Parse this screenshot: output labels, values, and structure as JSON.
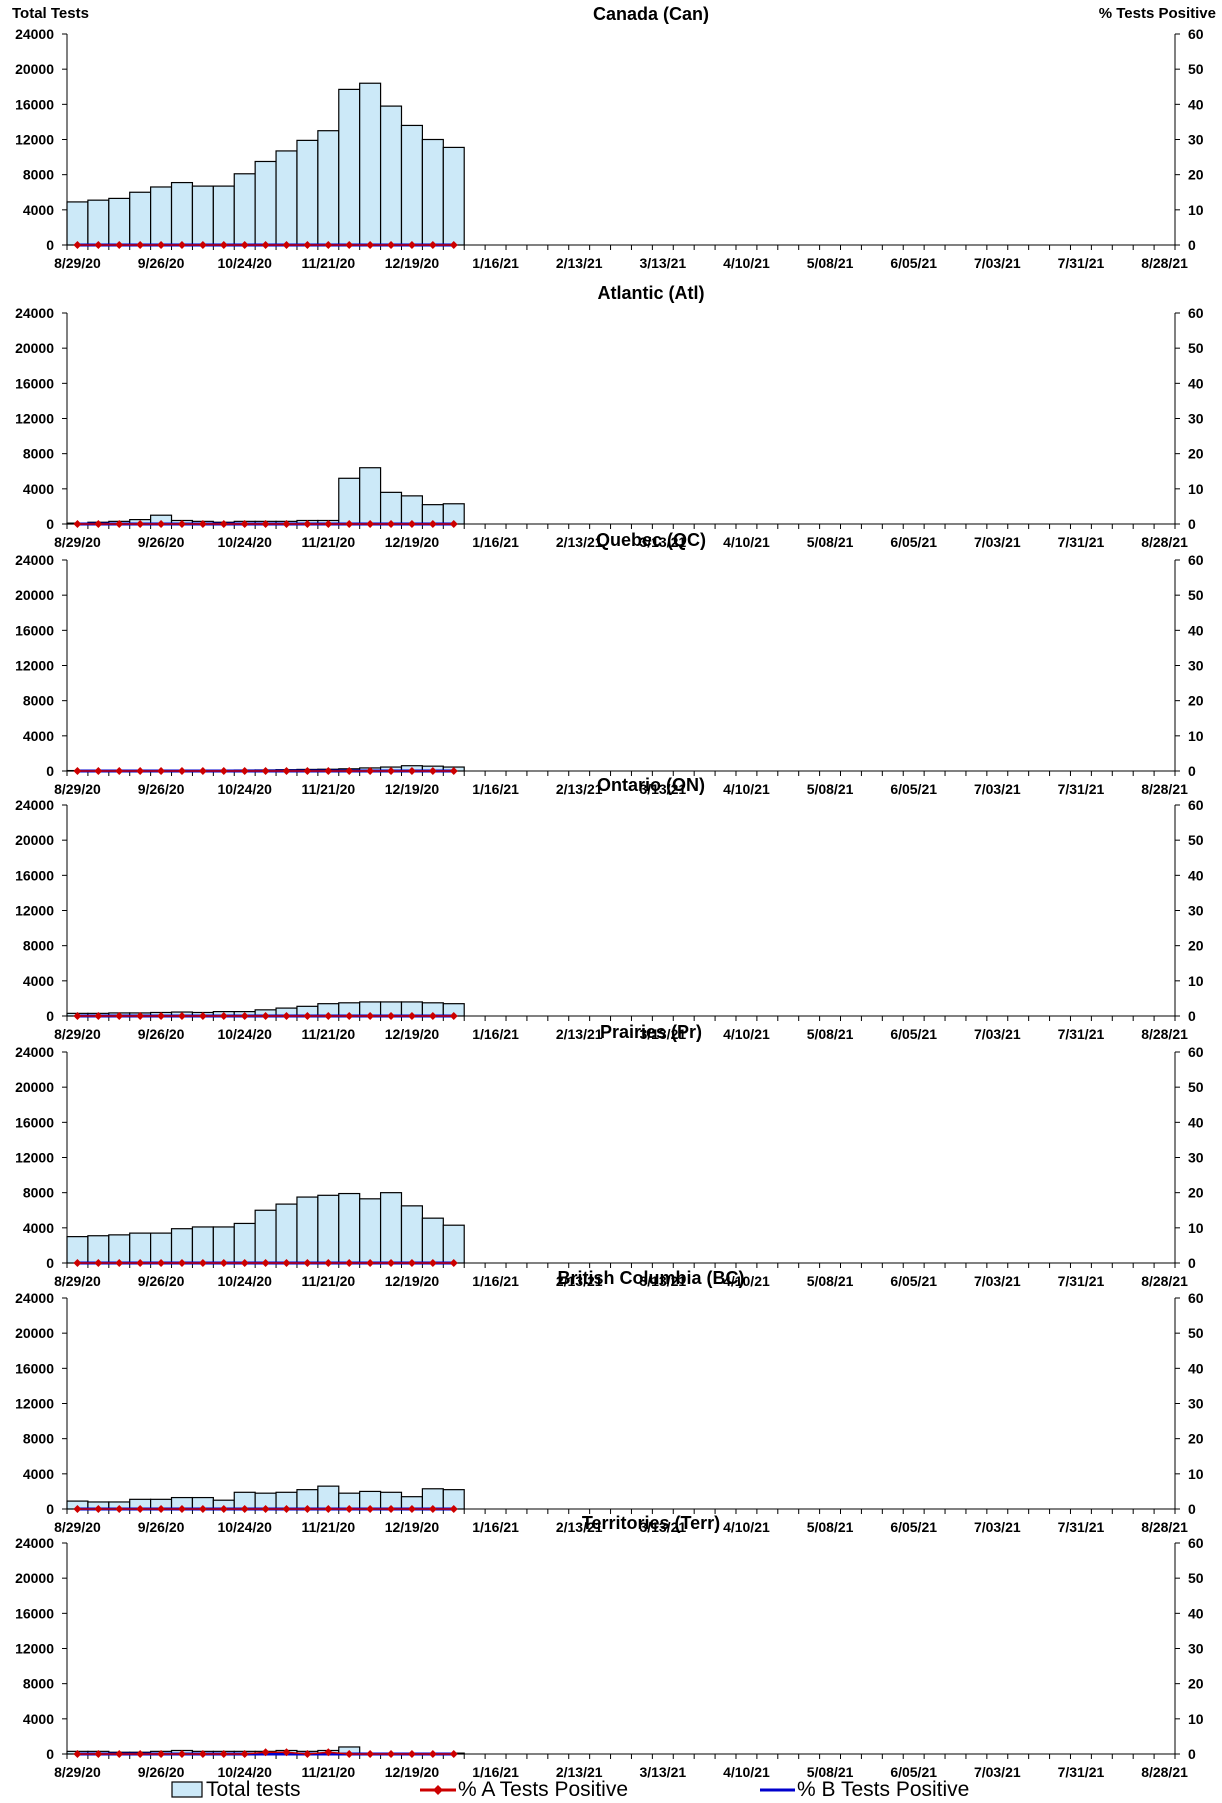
{
  "left_axis_title": "Total Tests",
  "right_axis_title": "% Tests Positive",
  "legend": {
    "total": "Total tests",
    "a": "% A Tests Positive",
    "b": "% B Tests Positive"
  },
  "colors": {
    "bar_fill": "#cce9f8",
    "bar_stroke": "#000000",
    "line_a": "#cc0000",
    "line_b": "#0000cc"
  },
  "x_tick_labels": [
    "8/29/20",
    "9/26/20",
    "10/24/20",
    "11/21/20",
    "12/19/20",
    "1/16/21",
    "2/13/21",
    "3/13/21",
    "4/10/21",
    "5/08/21",
    "6/05/21",
    "7/03/21",
    "7/31/21",
    "8/28/21"
  ],
  "chart_data": [
    {
      "type": "bar",
      "title": "Canada (Can)",
      "ylim": [
        0,
        24000
      ],
      "y2lim": [
        0,
        60
      ],
      "yticks": [
        0,
        4000,
        8000,
        12000,
        16000,
        20000,
        24000
      ],
      "y2ticks": [
        0,
        10,
        20,
        30,
        40,
        50,
        60
      ],
      "x_start": "8/29/20",
      "x_end": "8/28/21",
      "series": [
        {
          "name": "Total tests",
          "values": [
            4900,
            5100,
            5300,
            6000,
            6600,
            7100,
            6700,
            6700,
            8100,
            9500,
            10700,
            11900,
            13000,
            17700,
            18400,
            15800,
            13600,
            12000,
            11100
          ]
        },
        {
          "name": "% A Tests Positive",
          "values": [
            0,
            0,
            0,
            0,
            0,
            0,
            0,
            0,
            0,
            0,
            0,
            0,
            0,
            0,
            0,
            0,
            0,
            0,
            0
          ]
        },
        {
          "name": "% B Tests Positive",
          "values": [
            0,
            0,
            0,
            0,
            0,
            0,
            0,
            0,
            0,
            0,
            0,
            0,
            0,
            0,
            0,
            0,
            0,
            0,
            0
          ]
        }
      ]
    },
    {
      "type": "bar",
      "title": "Atlantic (Atl)",
      "ylim": [
        0,
        24000
      ],
      "y2lim": [
        0,
        60
      ],
      "yticks": [
        0,
        4000,
        8000,
        12000,
        16000,
        20000,
        24000
      ],
      "y2ticks": [
        0,
        10,
        20,
        30,
        40,
        50,
        60
      ],
      "series": [
        {
          "name": "Total tests",
          "values": [
            100,
            200,
            300,
            500,
            1000,
            400,
            300,
            200,
            300,
            300,
            300,
            400,
            400,
            5200,
            6400,
            3600,
            3200,
            2200,
            2300
          ]
        },
        {
          "name": "% A Tests Positive",
          "values": [
            0,
            0,
            0,
            0,
            0,
            0,
            0,
            0,
            0,
            0,
            0,
            0,
            0,
            0,
            0,
            0,
            0,
            0,
            0
          ]
        },
        {
          "name": "% B Tests Positive",
          "values": [
            0,
            0,
            0,
            0,
            0,
            0,
            0,
            0,
            0,
            0,
            0,
            0,
            0,
            0,
            0,
            0,
            0,
            0,
            0
          ]
        }
      ]
    },
    {
      "type": "bar",
      "title": "Quebec (QC)",
      "ylim": [
        0,
        24000
      ],
      "y2lim": [
        0,
        60
      ],
      "yticks": [
        0,
        4000,
        8000,
        12000,
        16000,
        20000,
        24000
      ],
      "y2ticks": [
        0,
        10,
        20,
        30,
        40,
        50,
        60
      ],
      "series": [
        {
          "name": "Total tests",
          "values": [
            50,
            50,
            50,
            60,
            70,
            80,
            90,
            100,
            110,
            120,
            150,
            180,
            200,
            250,
            350,
            450,
            600,
            550,
            450
          ]
        },
        {
          "name": "% A Tests Positive",
          "values": [
            0,
            0,
            0,
            0,
            0,
            0,
            0,
            0,
            0,
            0,
            0,
            0,
            0,
            0,
            0,
            0,
            0,
            0,
            0
          ]
        },
        {
          "name": "% B Tests Positive",
          "values": [
            0,
            0,
            0,
            0,
            0,
            0,
            0,
            0,
            0,
            0,
            0,
            0,
            0,
            0,
            0,
            0,
            0,
            0,
            0
          ]
        }
      ]
    },
    {
      "type": "bar",
      "title": "Ontario (ON)",
      "ylim": [
        0,
        24000
      ],
      "y2lim": [
        0,
        60
      ],
      "yticks": [
        0,
        4000,
        8000,
        12000,
        16000,
        20000,
        24000
      ],
      "y2ticks": [
        0,
        10,
        20,
        30,
        40,
        50,
        60
      ],
      "series": [
        {
          "name": "Total tests",
          "values": [
            300,
            300,
            350,
            350,
            400,
            450,
            400,
            500,
            500,
            700,
            900,
            1100,
            1400,
            1500,
            1600,
            1600,
            1600,
            1500,
            1400
          ]
        },
        {
          "name": "% A Tests Positive",
          "values": [
            0,
            0,
            0,
            0,
            0,
            0,
            0,
            0,
            0,
            0,
            0,
            0,
            0,
            0,
            0,
            0,
            0,
            0,
            0
          ]
        },
        {
          "name": "% B Tests Positive",
          "values": [
            0,
            0,
            0,
            0,
            0,
            0,
            0,
            0,
            0,
            0,
            0,
            0,
            0,
            0,
            0,
            0,
            0,
            0,
            0
          ]
        }
      ]
    },
    {
      "type": "bar",
      "title": "Prairies (Pr)",
      "ylim": [
        0,
        24000
      ],
      "y2lim": [
        0,
        60
      ],
      "yticks": [
        0,
        4000,
        8000,
        12000,
        16000,
        20000,
        24000
      ],
      "y2ticks": [
        0,
        10,
        20,
        30,
        40,
        50,
        60
      ],
      "series": [
        {
          "name": "Total tests",
          "values": [
            3000,
            3100,
            3200,
            3400,
            3400,
            3900,
            4100,
            4100,
            4500,
            6000,
            6700,
            7500,
            7700,
            7900,
            7300,
            8000,
            6500,
            5100,
            4300
          ]
        },
        {
          "name": "% A Tests Positive",
          "values": [
            0,
            0,
            0,
            0,
            0,
            0,
            0,
            0,
            0,
            0,
            0,
            0,
            0,
            0,
            0,
            0,
            0,
            0,
            0
          ]
        },
        {
          "name": "% B Tests Positive",
          "values": [
            0,
            0,
            0,
            0,
            0,
            0,
            0,
            0,
            0,
            0,
            0,
            0,
            0,
            0,
            0,
            0,
            0,
            0,
            0
          ]
        }
      ]
    },
    {
      "type": "bar",
      "title": "British Columbia (BC)",
      "ylim": [
        0,
        24000
      ],
      "y2lim": [
        0,
        60
      ],
      "yticks": [
        0,
        4000,
        8000,
        12000,
        16000,
        20000,
        24000
      ],
      "y2ticks": [
        0,
        10,
        20,
        30,
        40,
        50,
        60
      ],
      "series": [
        {
          "name": "Total tests",
          "values": [
            900,
            800,
            800,
            1100,
            1100,
            1300,
            1300,
            1000,
            1900,
            1800,
            1900,
            2200,
            2600,
            1800,
            2000,
            1900,
            1400,
            2300,
            2200
          ]
        },
        {
          "name": "% A Tests Positive",
          "values": [
            0,
            0,
            0,
            0,
            0,
            0,
            0,
            0,
            0,
            0,
            0,
            0,
            0,
            0,
            0,
            0,
            0,
            0,
            0
          ]
        },
        {
          "name": "% B Tests Positive",
          "values": [
            0,
            0,
            0,
            0,
            0,
            0,
            0,
            0,
            0,
            0,
            0,
            0,
            0,
            0,
            0,
            0,
            0,
            0,
            0
          ]
        }
      ]
    },
    {
      "type": "bar",
      "title": "Territories (Terr)",
      "ylim": [
        0,
        24000
      ],
      "y2lim": [
        0,
        60
      ],
      "yticks": [
        0,
        4000,
        8000,
        12000,
        16000,
        20000,
        24000
      ],
      "y2ticks": [
        0,
        10,
        20,
        30,
        40,
        50,
        60
      ],
      "series": [
        {
          "name": "Total tests",
          "values": [
            300,
            300,
            200,
            200,
            300,
            400,
            300,
            300,
            300,
            300,
            400,
            300,
            400,
            800,
            100,
            100,
            100,
            100,
            100
          ]
        },
        {
          "name": "% A Tests Positive",
          "values": [
            0,
            0,
            0,
            0,
            0,
            0,
            0,
            0,
            0,
            0.5,
            0.5,
            0,
            0.5,
            0,
            0,
            0,
            0,
            0,
            0
          ]
        },
        {
          "name": "% B Tests Positive",
          "values": [
            0,
            0,
            0,
            0,
            0,
            0,
            0,
            0,
            0,
            0,
            0,
            0,
            0,
            0,
            0,
            0,
            0,
            0,
            0
          ]
        }
      ]
    }
  ]
}
